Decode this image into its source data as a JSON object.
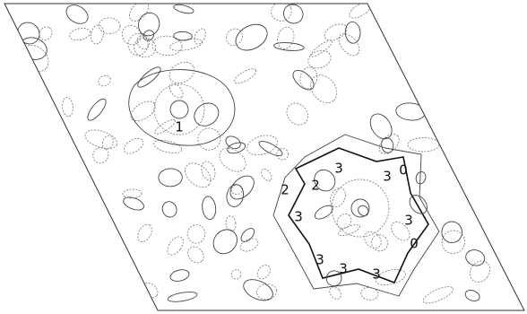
{
  "figure": {
    "contour_labels": [
      "3",
      "3",
      "3",
      "3",
      "3",
      "3",
      "3",
      "2",
      "2",
      "0",
      "0",
      "1"
    ]
  }
}
